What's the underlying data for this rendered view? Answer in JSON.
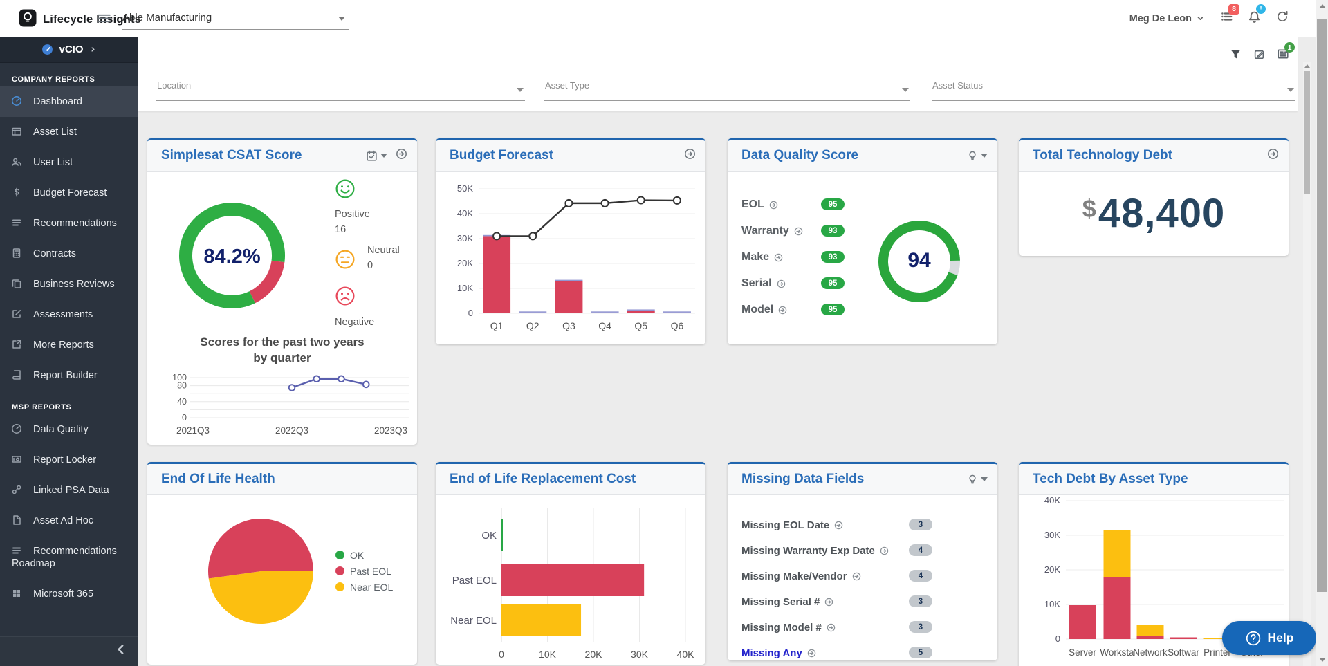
{
  "topbar": {
    "brand": "Lifecycle Insights",
    "company": "Able Manufacturing",
    "user": "Meg De Leon",
    "tasks_badge": "8",
    "alert_badge": "!",
    "reports_badge": "1"
  },
  "sidebar": {
    "module": "vCIO",
    "sections": [
      {
        "label": "COMPANY REPORTS",
        "items": [
          {
            "label": "Dashboard",
            "icon": "gauge",
            "active": true
          },
          {
            "label": "Asset List",
            "icon": "table"
          },
          {
            "label": "User List",
            "icon": "users"
          },
          {
            "label": "Budget Forecast",
            "icon": "dollar"
          },
          {
            "label": "Recommendations",
            "icon": "rows"
          },
          {
            "label": "Contracts",
            "icon": "calculator"
          },
          {
            "label": "Business Reviews",
            "icon": "copy"
          },
          {
            "label": "Assessments",
            "icon": "edit"
          },
          {
            "label": "More Reports",
            "icon": "external"
          },
          {
            "label": "Report Builder",
            "icon": "book"
          }
        ]
      },
      {
        "label": "MSP REPORTS",
        "items": [
          {
            "label": "Data Quality",
            "icon": "gauge"
          },
          {
            "label": "Report Locker",
            "icon": "locker"
          },
          {
            "label": "Linked PSA Data",
            "icon": "link"
          },
          {
            "label": "Asset Ad Hoc",
            "icon": "file"
          },
          {
            "label": "Recommendations Roadmap",
            "icon": "rows"
          },
          {
            "label": "Microsoft 365",
            "icon": "windows"
          }
        ]
      }
    ]
  },
  "filters": [
    {
      "label": "Location"
    },
    {
      "label": "Asset Type"
    },
    {
      "label": "Asset Status"
    }
  ],
  "cards": {
    "csat": {
      "title": "Simplesat CSAT Score",
      "score": "84.2%",
      "sentiments": [
        {
          "label": "Positive",
          "count": "16"
        },
        {
          "label": "Neutral",
          "count": "0"
        },
        {
          "label": "Negative"
        }
      ],
      "trend_title": "Scores for the past two years by quarter"
    },
    "budget": {
      "title": "Budget Forecast"
    },
    "data_quality": {
      "title": "Data Quality Score",
      "overall": "94",
      "rows": [
        {
          "label": "EOL",
          "value": "95"
        },
        {
          "label": "Warranty",
          "value": "93"
        },
        {
          "label": "Make",
          "value": "93"
        },
        {
          "label": "Serial",
          "value": "95"
        },
        {
          "label": "Model",
          "value": "95"
        }
      ]
    },
    "tech_debt": {
      "title": "Total Technology Debt",
      "currency": "$",
      "amount": "48,400"
    },
    "eol_health": {
      "title": "End Of Life Health",
      "legend": [
        {
          "label": "OK",
          "color": "#28a745"
        },
        {
          "label": "Past EOL",
          "color": "#d8415a"
        },
        {
          "label": "Near EOL",
          "color": "#fcbf10"
        }
      ]
    },
    "eol_cost": {
      "title": "End of Life Replacement Cost"
    },
    "missing": {
      "title": "Missing Data Fields",
      "rows": [
        {
          "label": "Missing EOL Date",
          "value": "3"
        },
        {
          "label": "Missing Warranty Exp Date",
          "value": "4"
        },
        {
          "label": "Missing Make/Vendor",
          "value": "4"
        },
        {
          "label": "Missing Serial #",
          "value": "3"
        },
        {
          "label": "Missing Model #",
          "value": "3"
        },
        {
          "label": "Missing Any",
          "value": "5",
          "link": true
        }
      ]
    },
    "tech_debt_type": {
      "title": "Tech Debt By Asset Type"
    }
  },
  "help": {
    "label": "Help"
  },
  "chart_data": [
    {
      "id": "csat-donut",
      "type": "pie",
      "donut": true,
      "center_label": "84.2%",
      "rotation": 154,
      "slices": [
        {
          "label": "Positive share",
          "value": 84.2,
          "color": "#2eae44"
        },
        {
          "label": "Negative share",
          "value": 15.8,
          "color": "#d8415a"
        }
      ]
    },
    {
      "id": "csat-trend",
      "type": "line",
      "title": "Scores for the past two years by quarter",
      "x": [
        "2022Q3",
        "2022Q4",
        "2023Q1",
        "2023Q2"
      ],
      "values": [
        75,
        97,
        97,
        83
      ],
      "xticks": [
        "2021Q3",
        "2022Q3",
        "2023Q3"
      ],
      "yticks": [
        100,
        80,
        40,
        0
      ],
      "ylim": [
        0,
        100
      ],
      "grid": true,
      "color": "#5a5fae"
    },
    {
      "id": "budget-forecast",
      "type": "bar",
      "categories": [
        "Q1",
        "Q2",
        "Q3",
        "Q4",
        "Q5",
        "Q6"
      ],
      "bars": [
        31000,
        300,
        13000,
        300,
        1100,
        300
      ],
      "line": [
        31000,
        31000,
        44200,
        44200,
        45400,
        45300
      ],
      "bar_color": "#d8415a",
      "line_color": "#333333",
      "yticks": [
        "0",
        "10K",
        "20K",
        "30K",
        "40K",
        "50K"
      ],
      "ylim": [
        0,
        50000
      ],
      "grid": true
    },
    {
      "id": "dq-gauge",
      "type": "donut",
      "value": 94,
      "max": 100,
      "center_label": "94",
      "color": "#2aa63c",
      "track_color": "#d9dcdf",
      "rotation": 110
    },
    {
      "id": "eol-health",
      "type": "pie",
      "rotation": 90,
      "legend_position": "right",
      "slices": [
        {
          "label": "Near EOL",
          "value": 47.8,
          "color": "#fcbf10"
        },
        {
          "label": "Past EOL",
          "value": 52.2,
          "color": "#d8415a"
        },
        {
          "label": "OK",
          "value": 0,
          "color": "#28a745"
        }
      ]
    },
    {
      "id": "eol-cost",
      "type": "barh",
      "categories": [
        "OK",
        "Past EOL",
        "Near EOL"
      ],
      "values": [
        150,
        31000,
        17300
      ],
      "colors": [
        "#28a745",
        "#d8415a",
        "#fcbf10"
      ],
      "xticks": [
        "0",
        "10K",
        "20K",
        "30K",
        "40K"
      ],
      "xlim": [
        0,
        42000
      ],
      "grid": true
    },
    {
      "id": "tech-debt-by-type",
      "type": "bar",
      "stacked": true,
      "categories": [
        "Server",
        "Worksta",
        "Network",
        "Softwar",
        "Printer",
        "Other"
      ],
      "series": [
        {
          "name": "Past EOL",
          "color": "#d8415a",
          "values": [
            9800,
            18000,
            800,
            500,
            0,
            0
          ]
        },
        {
          "name": "Near EOL",
          "color": "#fcbf10",
          "values": [
            0,
            13400,
            3400,
            0,
            400,
            300
          ]
        }
      ],
      "yticks": [
        "0",
        "10K",
        "20K",
        "30K",
        "40K"
      ],
      "ylim": [
        0,
        46000
      ],
      "grid": true
    }
  ]
}
